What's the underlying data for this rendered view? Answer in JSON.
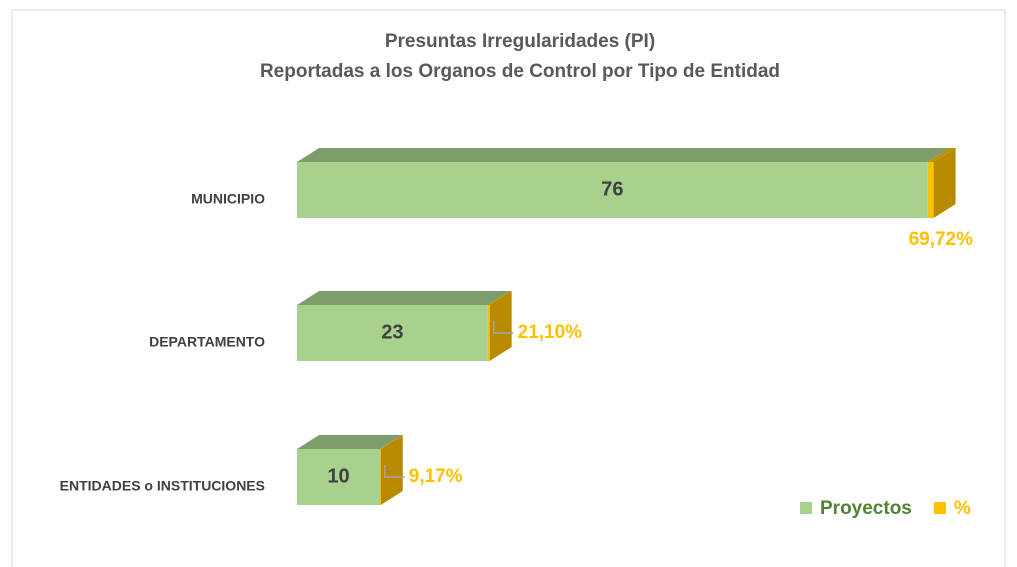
{
  "chart_data": {
    "type": "bar",
    "orientation": "horizontal",
    "stacked": true,
    "three_d": true,
    "title": "Presuntas Irregularidades (PI)",
    "subtitle": "Reportadas a los Organos de Control por Tipo de Entidad",
    "categories": [
      "MUNICIPIO",
      "DEPARTAMENTO",
      "ENTIDADES o INSTITUCIONES"
    ],
    "series": [
      {
        "name": "Proyectos",
        "color": "#a9d18e",
        "label_color": "#404040",
        "legend_color": "#548235",
        "values": [
          76,
          23,
          10
        ]
      },
      {
        "name": "%",
        "color": "#ffc000",
        "label_color": "#ffc000",
        "legend_color": "#ffc000",
        "values": [
          0.6972,
          0.211,
          0.0917
        ],
        "value_labels": [
          "69,72%",
          "21,10%",
          "9,17%"
        ]
      }
    ],
    "xlim": [
      0,
      80
    ],
    "legend": "lower right"
  }
}
